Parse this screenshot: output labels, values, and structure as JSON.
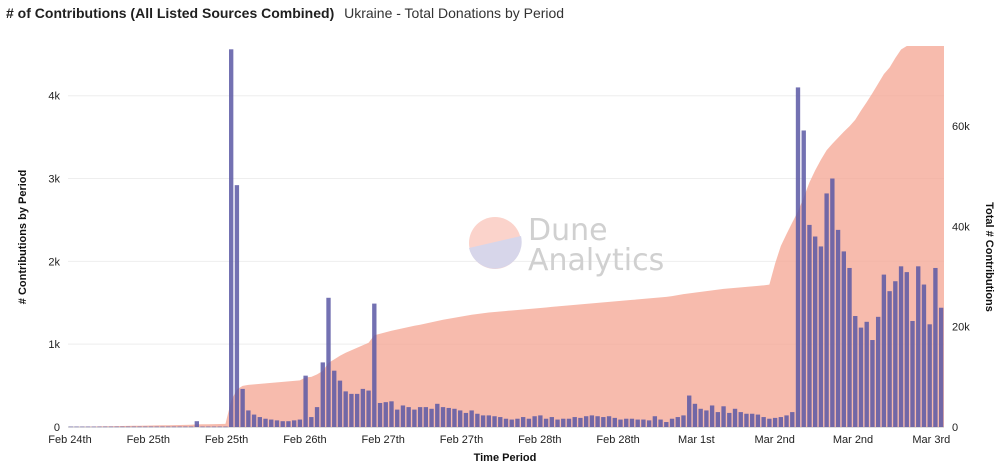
{
  "header": {
    "title": "# of Contributions (All Listed Sources Combined)",
    "subtitle": "Ukraine - Total Donations by Period"
  },
  "watermark": {
    "line1": "Dune",
    "line2": "Analytics"
  },
  "chart_data": {
    "type": "bar",
    "title": "# of Contributions (All Listed Sources Combined)",
    "subtitle": "Ukraine - Total Donations by Period",
    "xlabel": "Time Period",
    "ylabel": "# Contributions by Period",
    "y2label": "Total # Contributions",
    "ylim": [
      0,
      4600
    ],
    "y2lim": [
      0,
      76000
    ],
    "yticks": [
      0,
      1000,
      2000,
      3000,
      4000
    ],
    "ytick_labels": [
      "0",
      "1k",
      "2k",
      "3k",
      "4k"
    ],
    "y2ticks": [
      0,
      20000,
      40000,
      60000
    ],
    "y2tick_labels": [
      "0",
      "20k",
      "40k",
      "60k"
    ],
    "xtick_labels": [
      "Feb 24th",
      "Feb 25th",
      "Feb 25th",
      "Feb 26th",
      "Feb 27th",
      "Feb 27th",
      "Feb 28th",
      "Feb 28th",
      "Mar 1st",
      "Mar 2nd",
      "Mar 2nd",
      "Mar 3rd"
    ],
    "series": [
      {
        "name": "Contributions by Period",
        "kind": "bar",
        "axis": "left",
        "color": "#5a58a4",
        "values": [
          5,
          5,
          5,
          5,
          5,
          5,
          5,
          5,
          5,
          5,
          5,
          5,
          5,
          5,
          5,
          5,
          5,
          5,
          5,
          5,
          5,
          5,
          70,
          5,
          5,
          5,
          5,
          5,
          4560,
          2920,
          460,
          200,
          150,
          120,
          100,
          90,
          80,
          70,
          70,
          80,
          90,
          620,
          120,
          240,
          780,
          1560,
          680,
          560,
          430,
          400,
          400,
          460,
          440,
          1490,
          290,
          300,
          310,
          210,
          260,
          240,
          210,
          240,
          240,
          220,
          280,
          240,
          230,
          220,
          200,
          170,
          200,
          160,
          140,
          140,
          130,
          120,
          100,
          90,
          100,
          120,
          100,
          130,
          140,
          100,
          120,
          90,
          100,
          100,
          120,
          110,
          130,
          140,
          130,
          120,
          130,
          110,
          90,
          100,
          100,
          90,
          90,
          80,
          130,
          90,
          60,
          100,
          120,
          140,
          380,
          280,
          220,
          200,
          260,
          180,
          250,
          170,
          220,
          180,
          160,
          160,
          150,
          120,
          100,
          110,
          120,
          140,
          180,
          4100,
          3580,
          2440,
          2300,
          2180,
          2820,
          3000,
          2380,
          2120,
          1920,
          1340,
          1200,
          1270,
          1050,
          1330,
          1840,
          1640,
          1760,
          1940,
          1870,
          1280,
          1940,
          1720,
          1240,
          1920,
          1440
        ]
      },
      {
        "name": "Total # Contributions",
        "kind": "area",
        "axis": "right",
        "color": "#f5a896",
        "values": [
          20,
          40,
          60,
          80,
          100,
          120,
          140,
          160,
          180,
          200,
          220,
          240,
          260,
          280,
          300,
          320,
          340,
          360,
          380,
          400,
          420,
          440,
          520,
          540,
          560,
          580,
          600,
          620,
          5200,
          7500,
          8200,
          8400,
          8500,
          8600,
          8700,
          8800,
          8900,
          9000,
          9100,
          9200,
          9300,
          9900,
          10000,
          10500,
          11200,
          12800,
          13500,
          14200,
          14800,
          15300,
          15800,
          16300,
          16800,
          18300,
          18600,
          18900,
          19200,
          19450,
          19700,
          19950,
          20200,
          20400,
          20650,
          20900,
          21150,
          21400,
          21600,
          21800,
          22000,
          22200,
          22400,
          22550,
          22700,
          22850,
          22950,
          23050,
          23150,
          23250,
          23350,
          23450,
          23550,
          23650,
          23750,
          23850,
          23950,
          24050,
          24150,
          24250,
          24350,
          24450,
          24550,
          24650,
          24750,
          24850,
          24950,
          25050,
          25150,
          25250,
          25350,
          25450,
          25550,
          25650,
          25750,
          25850,
          25950,
          26100,
          26300,
          26500,
          26650,
          26800,
          26950,
          27100,
          27250,
          27400,
          27550,
          27650,
          27750,
          27850,
          27950,
          28050,
          28150,
          28250,
          28400,
          32600,
          36100,
          38500,
          40800,
          43000,
          45800,
          48800,
          51200,
          53300,
          55200,
          56500,
          57700,
          58900,
          60000,
          61300,
          63100,
          64800,
          66600,
          68500,
          70400,
          71700,
          73600,
          75300,
          76000,
          76000,
          76000
        ]
      }
    ]
  }
}
